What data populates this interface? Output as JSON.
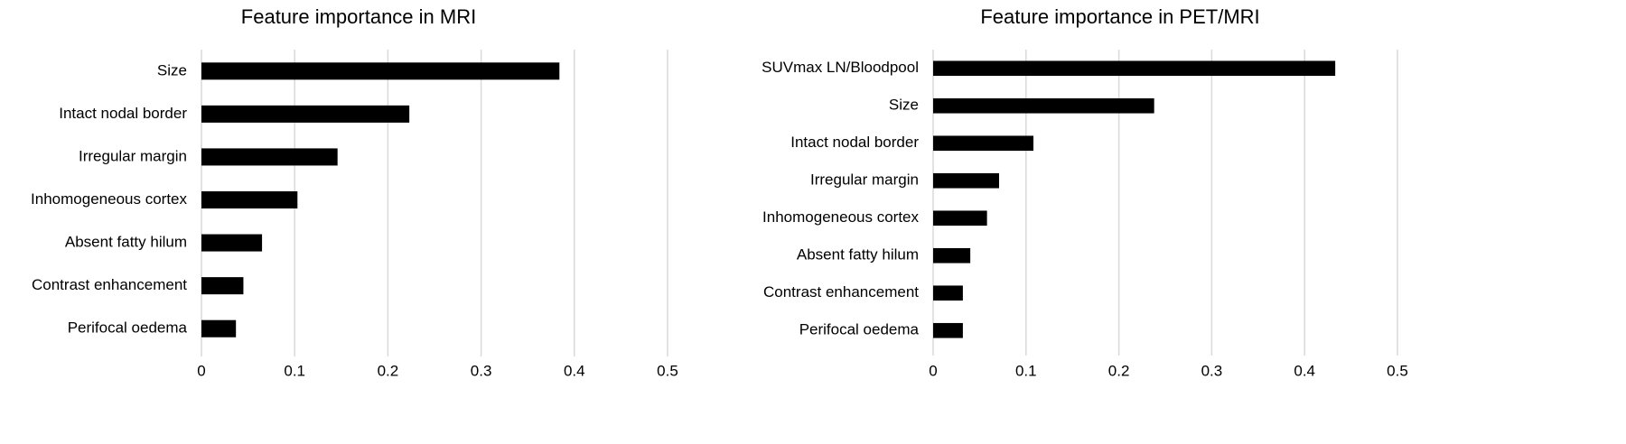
{
  "chart_data": [
    {
      "type": "barh",
      "title": "Feature importance in MRI",
      "categories": [
        "Size",
        "Intact nodal border",
        "Irregular margin",
        "Inhomogeneous cortex",
        "Absent fatty hilum",
        "Contrast enhancement",
        "Perifocal oedema"
      ],
      "values": [
        0.384,
        0.223,
        0.146,
        0.103,
        0.065,
        0.045,
        0.037
      ],
      "color": "#000000",
      "xlim": [
        0,
        0.5
      ],
      "xticks": [
        0,
        0.1,
        0.2,
        0.3,
        0.4,
        0.5
      ],
      "grid": true
    },
    {
      "type": "barh",
      "title": "Feature importance in PET/MRI",
      "categories": [
        "SUVmax LN/Bloodpool",
        "Size",
        "Intact nodal border",
        "Irregular margin",
        "Inhomogeneous cortex",
        "Absent fatty hilum",
        "Contrast enhancement",
        "Perifocal oedema"
      ],
      "values": [
        0.433,
        0.238,
        0.108,
        0.071,
        0.058,
        0.04,
        0.032,
        0.032
      ],
      "color": "#000000",
      "xlim": [
        0,
        0.5
      ],
      "xticks": [
        0,
        0.1,
        0.2,
        0.3,
        0.4,
        0.5
      ],
      "grid": true
    }
  ]
}
